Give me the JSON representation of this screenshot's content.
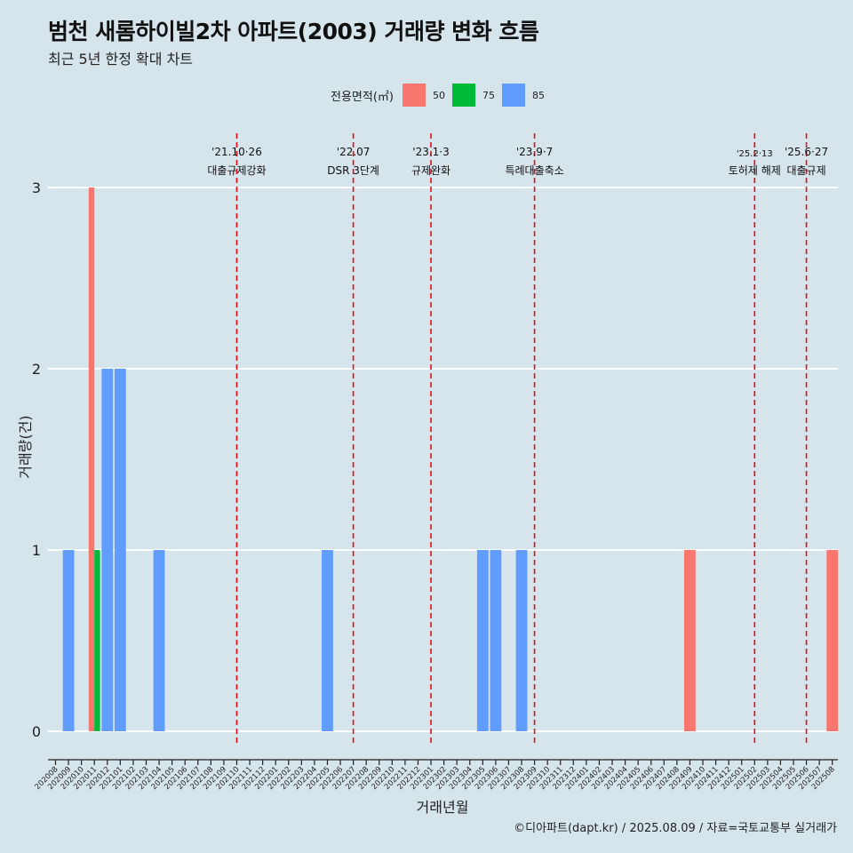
{
  "header": {
    "title": "범천 새롬하이빌2차 아파트(2003) 거래량 변화 흐름",
    "subtitle": "최근 5년 한정 확대 차트"
  },
  "footer": {
    "caption": "©디아파트(dapt.kr) / 2025.08.09 / 자료=국토교통부 실거래가"
  },
  "colors": {
    "background": "#d6e4eb",
    "gridline": "#ffffff",
    "event_line": "#e0101a",
    "area_50": "#f8766d",
    "area_75": "#00ba38",
    "area_85": "#619cff"
  },
  "chart_data": {
    "type": "bar",
    "title": "범천 새롬하이빌2차 아파트(2003) 거래량 변화 흐름",
    "subtitle": "최근 5년 한정 확대 차트",
    "xlabel": "거래년월",
    "ylabel": "거래량(건)",
    "ylim": [
      0,
      3
    ],
    "yticks": [
      0,
      1,
      2,
      3
    ],
    "grid": true,
    "legend": {
      "title": "전용면적(㎡)",
      "placement": "top-center",
      "entries": [
        "50",
        "75",
        "85"
      ]
    },
    "categories": [
      "202008",
      "202009",
      "202010",
      "202011",
      "202012",
      "202101",
      "202102",
      "202103",
      "202104",
      "202105",
      "202106",
      "202107",
      "202108",
      "202109",
      "202110",
      "202111",
      "202112",
      "202201",
      "202202",
      "202203",
      "202204",
      "202205",
      "202206",
      "202207",
      "202208",
      "202209",
      "202210",
      "202211",
      "202212",
      "202301",
      "202302",
      "202303",
      "202304",
      "202305",
      "202306",
      "202307",
      "202308",
      "202309",
      "202310",
      "202311",
      "202312",
      "202401",
      "202402",
      "202403",
      "202404",
      "202405",
      "202406",
      "202407",
      "202408",
      "202409",
      "202410",
      "202411",
      "202412",
      "202501",
      "202502",
      "202503",
      "202504",
      "202505",
      "202506",
      "202507",
      "202508"
    ],
    "series": [
      {
        "name": "50",
        "values": [
          0,
          0,
          0,
          3,
          0,
          0,
          0,
          0,
          0,
          0,
          0,
          0,
          0,
          0,
          0,
          0,
          0,
          0,
          0,
          0,
          0,
          0,
          0,
          0,
          0,
          0,
          0,
          0,
          0,
          0,
          0,
          0,
          0,
          0,
          0,
          0,
          0,
          0,
          0,
          0,
          0,
          0,
          0,
          0,
          0,
          0,
          0,
          0,
          0,
          1,
          0,
          0,
          0,
          0,
          0,
          0,
          0,
          0,
          0,
          0,
          1
        ]
      },
      {
        "name": "75",
        "values": [
          0,
          0,
          0,
          1,
          0,
          0,
          0,
          0,
          0,
          0,
          0,
          0,
          0,
          0,
          0,
          0,
          0,
          0,
          0,
          0,
          0,
          0,
          0,
          0,
          0,
          0,
          0,
          0,
          0,
          0,
          0,
          0,
          0,
          0,
          0,
          0,
          0,
          0,
          0,
          0,
          0,
          0,
          0,
          0,
          0,
          0,
          0,
          0,
          0,
          0,
          0,
          0,
          0,
          0,
          0,
          0,
          0,
          0,
          0,
          0,
          0
        ]
      },
      {
        "name": "85",
        "values": [
          0,
          1,
          0,
          0,
          2,
          2,
          0,
          0,
          1,
          0,
          0,
          0,
          0,
          0,
          0,
          0,
          0,
          0,
          0,
          0,
          0,
          1,
          0,
          0,
          0,
          0,
          0,
          0,
          0,
          0,
          0,
          0,
          0,
          1,
          1,
          0,
          1,
          0,
          0,
          0,
          0,
          0,
          0,
          0,
          0,
          0,
          0,
          0,
          0,
          0,
          0,
          0,
          0,
          0,
          0,
          0,
          0,
          0,
          0,
          0,
          0
        ]
      }
    ],
    "events": [
      {
        "category": "202110",
        "date": "'21.10·26",
        "label": "대출규제강화"
      },
      {
        "category": "202207",
        "date": "'22.07",
        "label": "DSR 3단계"
      },
      {
        "category": "202301",
        "date": "'23.1·3",
        "label": "규제완화"
      },
      {
        "category": "202309",
        "date": "'23.9·7",
        "label": "특례대출축소"
      },
      {
        "category": "202502",
        "date": "'25.2·13",
        "label": "토허제 해제"
      },
      {
        "category": "202506",
        "date": "'25.6·27",
        "label": "대출규제"
      }
    ]
  }
}
